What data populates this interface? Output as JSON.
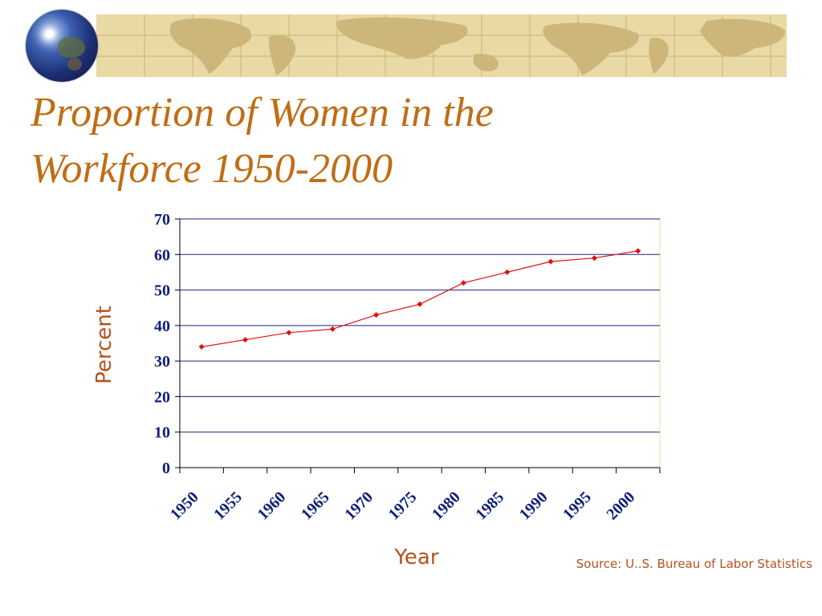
{
  "slide": {
    "title_line1": "Proportion of Women in the",
    "title_line2": "Workforce 1950-2000",
    "source": "Source: U..S. Bureau of Labor Statistics"
  },
  "colors": {
    "title": "#c06d15",
    "axis_label": "#b4521a",
    "tick_label": "#0f1f7a",
    "gridline": "#1a237e",
    "series": "#e01010",
    "banner": "#e9d9a5"
  },
  "chart_data": {
    "type": "line",
    "title": "",
    "xlabel": "Year",
    "ylabel": "Percent",
    "categories": [
      "1950",
      "1955",
      "1960",
      "1965",
      "1970",
      "1975",
      "1980",
      "1985",
      "1990",
      "1995",
      "2000"
    ],
    "series": [
      {
        "values": [
          34,
          36,
          38,
          39,
          43,
          46,
          52,
          55,
          58,
          59,
          61
        ]
      }
    ],
    "yticks": [
      0,
      10,
      20,
      30,
      40,
      50,
      60,
      70
    ],
    "ylim": [
      0,
      70
    ],
    "grid": true,
    "legend": "none"
  }
}
